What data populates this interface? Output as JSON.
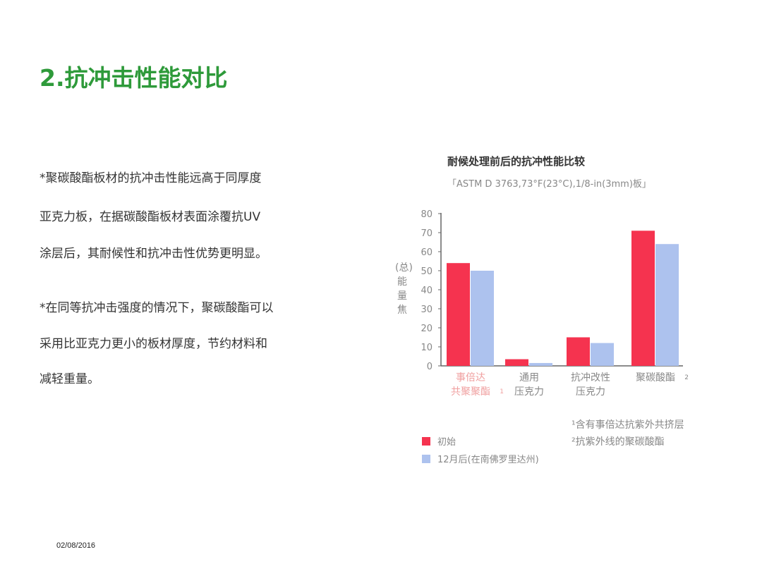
{
  "title": "2.抗冲击性能对比",
  "paragraphs": [
    [
      "*聚碳酸酯板材的抗冲击性能远高于同厚度",
      " 亚克力板，在据碳酸酯板材表面涂覆抗UV",
      " 涂层后，其耐候性和抗冲击性优势更明显。"
    ],
    [
      "*在同等抗冲击强度的情况下，聚碳酸酯可以",
      " 采用比亚克力更小的板材厚度，节约材料和",
      " 减轻重量。"
    ]
  ],
  "date": "02/08/2016",
  "chart_data": {
    "type": "bar",
    "title": "耐候处理前后的抗冲性能比较",
    "subtitle": "「ASTM D 3763,73°F(23°C),1/8-in(3mm)板」",
    "ylabel": "(总)能量焦",
    "ylim": [
      0,
      80
    ],
    "yticks": [
      0,
      10,
      20,
      30,
      40,
      50,
      60,
      70,
      80
    ],
    "categories": [
      {
        "lines": [
          "事倍达",
          "共聚聚酯"
        ],
        "sup": "1",
        "color": "#f0a0a0"
      },
      {
        "lines": [
          "通用",
          "压克力"
        ],
        "sup": "",
        "color": "#888888"
      },
      {
        "lines": [
          "抗冲改性",
          "压克力"
        ],
        "sup": "",
        "color": "#888888"
      },
      {
        "lines": [
          "聚碳酸酯"
        ],
        "sup": "2",
        "color": "#888888"
      }
    ],
    "series": [
      {
        "name": "初始",
        "color": "#f5334f",
        "values": [
          54,
          3.5,
          15,
          71
        ]
      },
      {
        "name": "12月后(在南佛罗里达州)",
        "color": "#adc2ee",
        "values": [
          50,
          1.5,
          12,
          64
        ]
      }
    ],
    "footnotes": [
      "¹含有事倍达抗紫外共挤层",
      "²抗紫外线的聚碳酸酯"
    ],
    "legend_position": "bottom-left",
    "grid": false
  }
}
